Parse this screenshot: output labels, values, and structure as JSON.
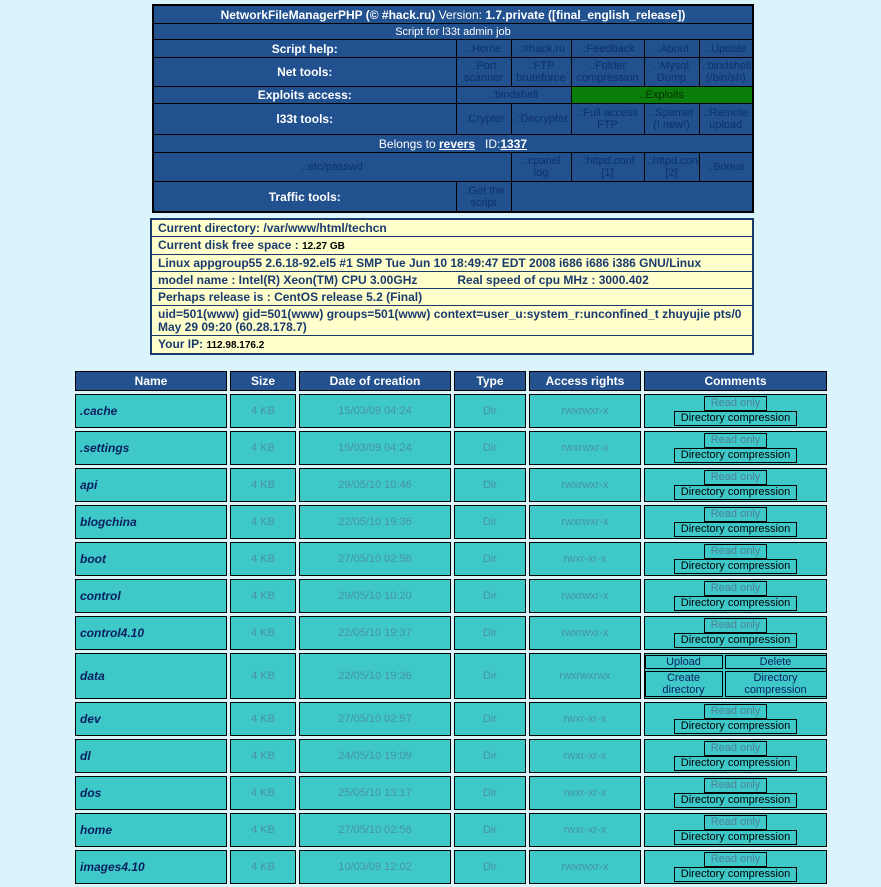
{
  "top_table": {
    "title_bold1": "NetworkFileManagerPHP (© #hack.ru)",
    "title_mid": " Version: ",
    "title_bold2": "1.7.private ([final_english_release])",
    "subtitle": "Script for l33t admin job",
    "menu_rows": [
      {
        "label": "Script help:",
        "cells": [
          ".:Home",
          ".:#hack.ru",
          ".:Feedback",
          ".:About",
          ".:Update"
        ]
      },
      {
        "label": "Net tools:",
        "cells": [
          ".:Port scanner",
          ".:FTP bruteforce",
          ".:Folder compression",
          ".:Mysql Dump",
          ".:bindshell (/bin/sh)"
        ]
      },
      {
        "label": "Exploits access:",
        "cells": [
          ".:bindshell",
          ".:Exploits"
        ]
      },
      {
        "label": "l33t tools:",
        "cells": [
          ".:Crypter",
          ".:Decrypter",
          ".:Full access FTP",
          ".:Spamer (! new!)",
          ".:Remote upload"
        ]
      }
    ],
    "belongs": {
      "prefix": "Belongs to",
      "owner": "revers",
      "id_label": "ID:",
      "id": "1337"
    },
    "passwd_row": {
      "main": ".:etc/passwd",
      "cells": [
        ".:cpanel log",
        ".:httpd.conf [1]",
        ".:httpd.conf [2]",
        ".:Bonus"
      ]
    },
    "traffic_row": {
      "label": "Traffic tools:",
      "link": ".:Get the script"
    },
    "colors": {
      "cell_blue": "#21518F",
      "exploits_green": "#0A7D0A",
      "link_navy": "#0D3070"
    }
  },
  "info_box": {
    "current_directory_label": "Current directory:",
    "current_directory": "/var/www/html/techcn",
    "disk_label": "Current disk free space :",
    "disk_value": "12.27 GB",
    "kernel": "Linux appgroup55 2.6.18-92.el5 #1 SMP Tue Jun 10 18:49:47 EDT 2008 i686 i686 i386 GNU/Linux",
    "model_name": "model name : Intel(R) Xeon(TM) CPU 3.00GHz",
    "cpu_speed": "Real speed of cpu MHz : 3000.402",
    "release": "Perhaps release is :  CentOS release 5.2 (Final)",
    "uid_info": "uid=501(www) gid=501(www) groups=501(www) context=user_u:system_r:unconfined_t        zhuyujie pts/0 May 29 09:20 (60.28.178.7)",
    "ip_label": "Your IP:",
    "ip_value": "112.98.176.2"
  },
  "file_table": {
    "headers": [
      "Name",
      "Size",
      "Date of creation",
      "Type",
      "Access rights",
      "Comments"
    ],
    "buttons": {
      "read_only": "Read only",
      "directory_compression": "Directory compression",
      "upload": "Upload",
      "delete": "Delete",
      "create_directory": "Create directory"
    },
    "rows": [
      {
        "name": ".cache",
        "size": "4 KB",
        "date": "15/03/09 04:24",
        "type": "Dir",
        "rights": "rwxrwxr-x",
        "comments": "readonly"
      },
      {
        "name": ".settings",
        "size": "4 KB",
        "date": "15/03/09 04:24",
        "type": "Dir",
        "rights": "rwxrwxr-x",
        "comments": "readonly"
      },
      {
        "name": "api",
        "size": "4 KB",
        "date": "29/05/10 10:46",
        "type": "Dir",
        "rights": "rwxrwxr-x",
        "comments": "readonly"
      },
      {
        "name": "blogchina",
        "size": "4 KB",
        "date": "22/05/10 19:36",
        "type": "Dir",
        "rights": "rwxrwxr-x",
        "comments": "readonly"
      },
      {
        "name": "boot",
        "size": "4 KB",
        "date": "27/05/10 02:56",
        "type": "Dir",
        "rights": "rwxr-xr-x",
        "comments": "readonly"
      },
      {
        "name": "control",
        "size": "4 KB",
        "date": "29/05/10 10:20",
        "type": "Dir",
        "rights": "rwxrwxr-x",
        "comments": "readonly"
      },
      {
        "name": "control4.10",
        "size": "4 KB",
        "date": "22/05/10 19:37",
        "type": "Dir",
        "rights": "rwxrwxr-x",
        "comments": "readonly"
      },
      {
        "name": "data",
        "size": "4 KB",
        "date": "22/05/10 19:36",
        "type": "Dir",
        "rights": "rwxrwxrwx",
        "comments": "full"
      },
      {
        "name": "dev",
        "size": "4 KB",
        "date": "27/05/10 02:57",
        "type": "Dir",
        "rights": "rwxr-xr-x",
        "comments": "readonly"
      },
      {
        "name": "dl",
        "size": "4 KB",
        "date": "24/05/10 19:09",
        "type": "Dir",
        "rights": "rwxr-xr-x",
        "comments": "readonly"
      },
      {
        "name": "dos",
        "size": "4 KB",
        "date": "25/05/10 13:17",
        "type": "Dir",
        "rights": "rwxr-xr-x",
        "comments": "readonly"
      },
      {
        "name": "home",
        "size": "4 KB",
        "date": "27/05/10 02:56",
        "type": "Dir",
        "rights": "rwxr-xr-x",
        "comments": "readonly"
      },
      {
        "name": "images4.10",
        "size": "4 KB",
        "date": "10/03/09 12:02",
        "type": "Dir",
        "rights": "rwxrwxr-x",
        "comments": "readonly"
      }
    ],
    "colors": {
      "row_bg": "#3FC8C8",
      "header_bg": "#23528F",
      "name_navy": "#0A2161",
      "muted_value": "#4792A8"
    }
  }
}
